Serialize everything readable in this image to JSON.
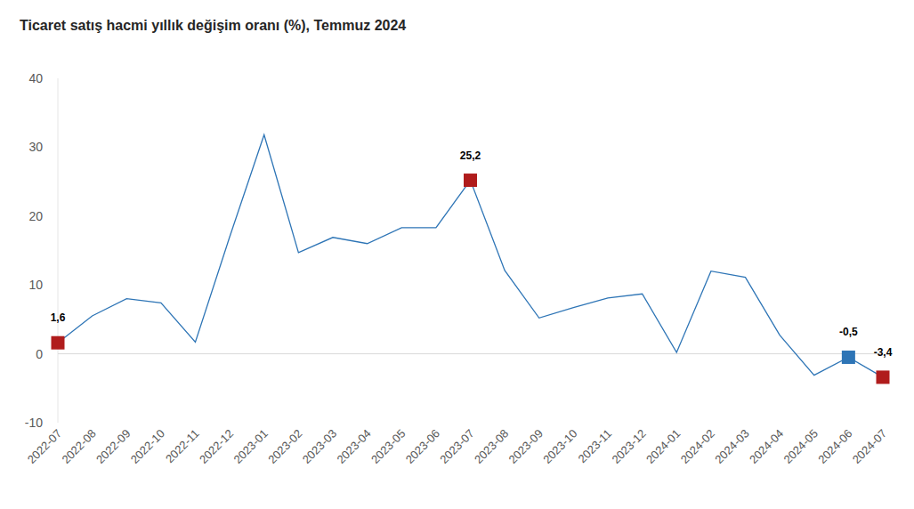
{
  "chart_data": {
    "type": "line",
    "title": "Ticaret satış hacmi yıllık değişim oranı (%), Temmuz 2024",
    "categories": [
      "2022-07",
      "2022-08",
      "2022-09",
      "2022-10",
      "2022-11",
      "2022-12",
      "2023-01",
      "2023-02",
      "2023-03",
      "2023-04",
      "2023-05",
      "2023-06",
      "2023-07",
      "2023-08",
      "2023-09",
      "2023-10",
      "2023-11",
      "2023-12",
      "2024-01",
      "2024-02",
      "2024-03",
      "2024-04",
      "2024-05",
      "2024-06",
      "2024-07"
    ],
    "series": [
      {
        "name": "Ticaret satış hacmi",
        "color": "#2e75b6",
        "marker": "square",
        "values": [
          1.6,
          5.5,
          8.0,
          7.4,
          1.7,
          17.0,
          31.8,
          14.7,
          16.9,
          16.0,
          18.3,
          18.3,
          25.2,
          12.1,
          5.2,
          6.7,
          8.1,
          8.7,
          0.2,
          12.0,
          11.1,
          2.7,
          -3.1,
          -0.5,
          -3.4
        ],
        "value_labels": [
          "1,6",
          null,
          null,
          null,
          null,
          null,
          null,
          null,
          null,
          null,
          null,
          null,
          "25,2",
          null,
          null,
          null,
          null,
          null,
          null,
          null,
          null,
          null,
          null,
          "-0,5",
          "-3,4"
        ],
        "colors": [
          "#b01c1c",
          null,
          null,
          null,
          null,
          null,
          null,
          null,
          null,
          null,
          null,
          null,
          "#b01c1c",
          null,
          null,
          null,
          null,
          null,
          null,
          null,
          null,
          null,
          null,
          "#2e75b6",
          "#b01c1c"
        ]
      }
    ],
    "ylim": [
      -10,
      40
    ],
    "yticks": [
      -10,
      0,
      10,
      20,
      30,
      40
    ],
    "grid": false,
    "data_labels": true
  }
}
